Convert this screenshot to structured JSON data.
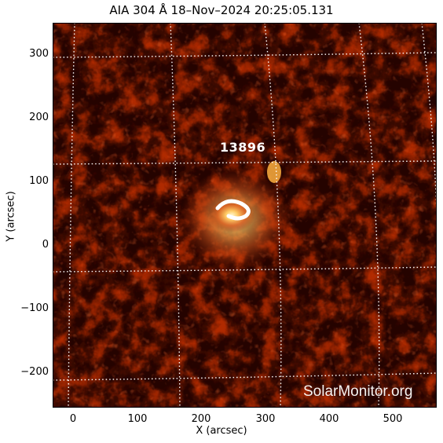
{
  "title": "AIA 304 Å 18–Nov–2024 20:25:05.131",
  "axes": {
    "xlabel": "X (arcsec)",
    "ylabel": "Y (arcsec)",
    "xticks": [
      "0",
      "100",
      "200",
      "300",
      "400",
      "500"
    ],
    "yticks": [
      "300",
      "200",
      "100",
      "0",
      "−100",
      "−200"
    ]
  },
  "region_label": "13896",
  "watermark": "SolarMonitor.org",
  "colors": {
    "background": "#070000",
    "chromosphere_dim": "#5a0a00",
    "chromosphere_mid": "#b02a00",
    "active_region": "#ffcc66",
    "grid": "#ffffff"
  }
}
